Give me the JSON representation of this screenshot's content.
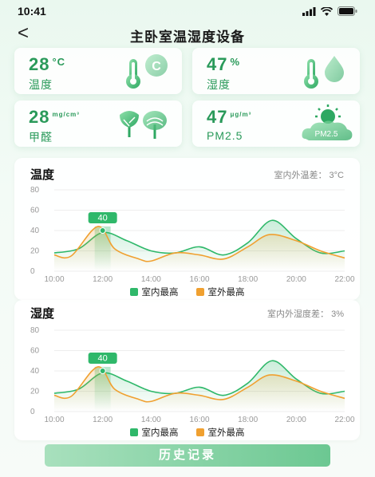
{
  "status": {
    "time": "10:41"
  },
  "nav": {
    "back": "<",
    "title": "主卧室温湿度设备"
  },
  "metrics": [
    {
      "value": "28",
      "unit": "°C",
      "label": "温度",
      "icon": "thermometer-celsius-icon"
    },
    {
      "value": "47",
      "unit": "%",
      "label": "湿度",
      "icon": "thermometer-droplet-icon"
    },
    {
      "value": "28",
      "unit": "mg/cm³",
      "label": "甲醛",
      "icon": "trees-icon"
    },
    {
      "value": "47",
      "unit": "μg/m³",
      "label": "PM2.5",
      "icon": "sun-cloud-pm25-icon",
      "badge": "PM2.5"
    }
  ],
  "colors": {
    "indoor": "#2fb86a",
    "outdoor": "#f0a030",
    "accent": "#2a9a5a"
  },
  "legend": {
    "indoor": "室内最高",
    "outdoor": "室外最高"
  },
  "chart_data": [
    {
      "type": "line",
      "title": "温度",
      "note": "室内外温差： 3°C",
      "x": [
        "10:00",
        "12:00",
        "14:00",
        "16:00",
        "18:00",
        "20:00",
        "22:00"
      ],
      "y_ticks": [
        0,
        20,
        40,
        60,
        80
      ],
      "ylim": [
        0,
        80
      ],
      "series": [
        {
          "name": "室内最高",
          "color": "#2fb86a",
          "points": [
            [
              10,
              18
            ],
            [
              11,
              22
            ],
            [
              12,
              38
            ],
            [
              13,
              30
            ],
            [
              14,
              20
            ],
            [
              15,
              18
            ],
            [
              16,
              24
            ],
            [
              17,
              16
            ],
            [
              18,
              28
            ],
            [
              19,
              50
            ],
            [
              20,
              32
            ],
            [
              21,
              18
            ],
            [
              22,
              20
            ]
          ]
        },
        {
          "name": "室外最高",
          "color": "#f0a030",
          "points": [
            [
              10,
              16
            ],
            [
              10.7,
              15
            ],
            [
              11.8,
              44
            ],
            [
              12.5,
              22
            ],
            [
              13.5,
              12
            ],
            [
              14,
              10
            ],
            [
              15,
              18
            ],
            [
              16,
              16
            ],
            [
              17,
              12
            ],
            [
              18,
              24
            ],
            [
              18.9,
              36
            ],
            [
              20,
              30
            ],
            [
              21,
              20
            ],
            [
              22,
              13
            ]
          ]
        }
      ],
      "highlight": {
        "x": 12,
        "value": "40"
      },
      "grid": true
    },
    {
      "type": "line",
      "title": "湿度",
      "note": "室内外湿度差： 3%",
      "x": [
        "10:00",
        "12:00",
        "14:00",
        "16:00",
        "18:00",
        "20:00",
        "22:00"
      ],
      "y_ticks": [
        0,
        20,
        40,
        60,
        80
      ],
      "ylim": [
        0,
        80
      ],
      "series": [
        {
          "name": "室内最高",
          "color": "#2fb86a",
          "points": [
            [
              10,
              18
            ],
            [
              11,
              22
            ],
            [
              12,
              38
            ],
            [
              13,
              30
            ],
            [
              14,
              20
            ],
            [
              15,
              18
            ],
            [
              16,
              24
            ],
            [
              17,
              16
            ],
            [
              18,
              28
            ],
            [
              19,
              50
            ],
            [
              20,
              32
            ],
            [
              21,
              18
            ],
            [
              22,
              20
            ]
          ]
        },
        {
          "name": "室外最高",
          "color": "#f0a030",
          "points": [
            [
              10,
              16
            ],
            [
              10.7,
              15
            ],
            [
              11.8,
              44
            ],
            [
              12.5,
              22
            ],
            [
              13.5,
              12
            ],
            [
              14,
              10
            ],
            [
              15,
              18
            ],
            [
              16,
              16
            ],
            [
              17,
              12
            ],
            [
              18,
              24
            ],
            [
              18.9,
              36
            ],
            [
              20,
              30
            ],
            [
              21,
              20
            ],
            [
              22,
              13
            ]
          ]
        }
      ],
      "highlight": {
        "x": 12,
        "value": "40"
      },
      "grid": true
    }
  ],
  "history_button": "历史记录"
}
